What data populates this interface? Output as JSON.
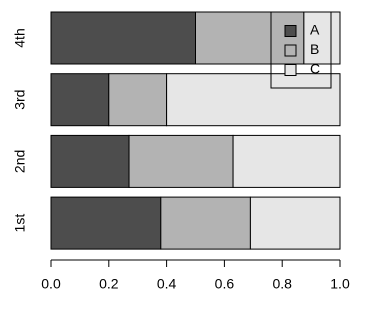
{
  "chart_data": {
    "type": "bar",
    "orientation": "horizontal",
    "stacked": true,
    "categories": [
      "1st",
      "2nd",
      "3rd",
      "4th"
    ],
    "series": [
      {
        "name": "A",
        "color": "#4d4d4d",
        "values": [
          0.38,
          0.27,
          0.2,
          0.5
        ]
      },
      {
        "name": "B",
        "color": "#b3b3b3",
        "values": [
          0.31,
          0.36,
          0.2,
          0.375
        ]
      },
      {
        "name": "C",
        "color": "#e6e6e6",
        "values": [
          0.31,
          0.37,
          0.6,
          0.125
        ]
      }
    ],
    "xlim": [
      0,
      1
    ],
    "xticks": [
      {
        "value": 0,
        "label": "0.0"
      },
      0.2,
      0.4,
      0.6,
      0.8,
      {
        "value": 1,
        "label": "1.0"
      }
    ],
    "legend": "top-right"
  }
}
